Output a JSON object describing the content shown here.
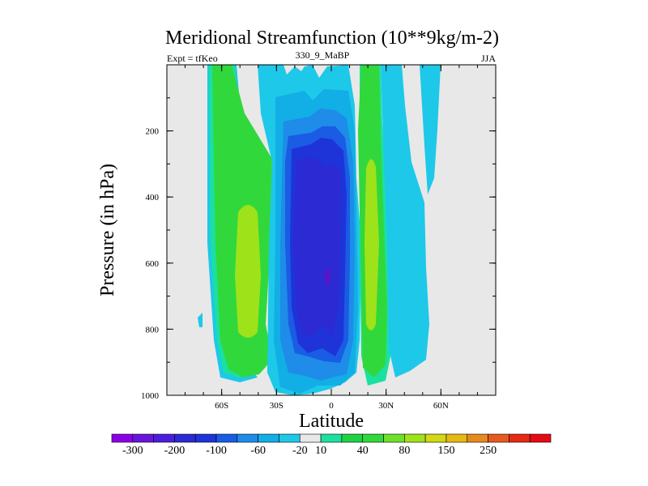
{
  "colors": {
    "background": "#e8e8e8",
    "levels": {
      "cyan": "#1ec8e8",
      "teal": "#1ce0a0",
      "green": "#30d83c",
      "ltblue": "#12aee6",
      "blue2": "#1e8ce8",
      "blue3": "#1a5ce4",
      "blue4": "#1e34d8",
      "blue5": "#2c2ad2",
      "violet": "#5a14c8",
      "yellowgreen": "#9ee21a"
    }
  },
  "chart_data": {
    "type": "heatmap",
    "title": "Meridional Streamfunction (10**9kg/m-2)",
    "left_label": "Expt = tfKeo",
    "center_label": "330_9_MaBP",
    "right_label": "JJA",
    "xlabel": "Latitude",
    "ylabel": "Pressure (in hPa)",
    "xlim": [
      -90,
      90
    ],
    "ylim": [
      0,
      1000
    ],
    "y_reversed": true,
    "x_ticks": [
      {
        "value": -60,
        "label": "60S"
      },
      {
        "value": -30,
        "label": "30S"
      },
      {
        "value": 0,
        "label": "0"
      },
      {
        "value": 30,
        "label": "30N"
      },
      {
        "value": 60,
        "label": "60N"
      }
    ],
    "y_ticks": [
      {
        "value": 200,
        "label": "200"
      },
      {
        "value": 400,
        "label": "400"
      },
      {
        "value": 600,
        "label": "600"
      },
      {
        "value": 800,
        "label": "800"
      },
      {
        "value": 1000,
        "label": "1000"
      }
    ],
    "colorbar": {
      "colors": [
        "#8c00e6",
        "#6a14dc",
        "#4c1edc",
        "#2c2ad2",
        "#1e34d8",
        "#1a5ce4",
        "#1e8ce8",
        "#12aee6",
        "#1ec8e8",
        "#e8e8e8",
        "#1ce0a0",
        "#1ed246",
        "#30d83c",
        "#6ee02a",
        "#9ee21a",
        "#d2d814",
        "#e6b814",
        "#e68a1e",
        "#e65a1e",
        "#e62a14",
        "#e60a14"
      ],
      "labels": [
        {
          "index": 1,
          "label": "-300"
        },
        {
          "index": 3,
          "label": "-200"
        },
        {
          "index": 5,
          "label": "-100"
        },
        {
          "index": 7,
          "label": "-60"
        },
        {
          "index": 9,
          "label": "-20"
        },
        {
          "index": 10,
          "label": "10"
        },
        {
          "index": 12,
          "label": "40"
        },
        {
          "index": 14,
          "label": "80"
        },
        {
          "index": 16,
          "label": "150"
        },
        {
          "index": 18,
          "label": "250"
        }
      ]
    }
  }
}
